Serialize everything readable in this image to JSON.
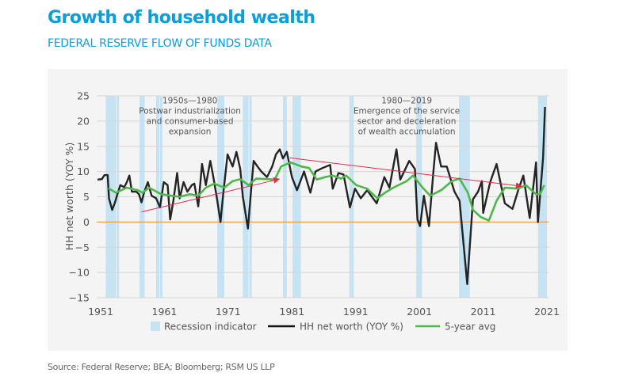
{
  "header": {
    "title": "Growth of household wealth",
    "subtitle": "FEDERAL RESERVE FLOW OF FUNDS DATA"
  },
  "footer": {
    "source": "Source: Federal Reserve; BEA; Bloomberg; RSM US LLP"
  },
  "chart_data": {
    "type": "line",
    "title": "",
    "xlabel": "",
    "ylabel": "HH net worth (YOY %)",
    "xlim": [
      1950.4,
      2021.3
    ],
    "ylim": [
      -15,
      25
    ],
    "x_ticks": [
      "1951",
      "1961",
      "1971",
      "1981",
      "1991",
      "2001",
      "2011",
      "2021"
    ],
    "y_ticks": [
      "25",
      "20",
      "15",
      "10",
      "5",
      "0",
      "−5",
      "−10",
      "−15"
    ],
    "grid": true,
    "legend_position": "bottom",
    "colors": {
      "recession": "#c5e3f3",
      "hh": "#111111",
      "avg": "#4db848",
      "zero_line": "#f08a24",
      "arrow": "#e8294c"
    },
    "legend": [
      "Recession indicator",
      "HH net worth (YOY %)",
      "5-year avg"
    ],
    "recessions": [
      [
        1951.8,
        1953.4
      ],
      [
        1953.5,
        1953.9
      ],
      [
        1957.1,
        1957.9
      ],
      [
        1959.7,
        1960.2
      ],
      [
        1960.3,
        1960.7
      ],
      [
        1969.3,
        1970.4
      ],
      [
        1973.3,
        1974.2
      ],
      [
        1974.3,
        1974.7
      ],
      [
        1979.6,
        1980.2
      ],
      [
        1981.1,
        1982.4
      ],
      [
        1990.0,
        1990.7
      ],
      [
        2000.5,
        2001.4
      ],
      [
        2007.2,
        2008.9
      ],
      [
        2019.6,
        2021.0
      ]
    ],
    "series": [
      {
        "name": "HH net worth (YOY %)",
        "points": [
          [
            1950.5,
            8.4
          ],
          [
            1951.2,
            8.5
          ],
          [
            1951.6,
            9.3
          ],
          [
            1952.1,
            9.3
          ],
          [
            1952.3,
            4.7
          ],
          [
            1952.8,
            2.4
          ],
          [
            1953.2,
            3.7
          ],
          [
            1953.7,
            5.8
          ],
          [
            1954.1,
            7.3
          ],
          [
            1954.7,
            6.9
          ],
          [
            1955.1,
            7.9
          ],
          [
            1955.5,
            9.2
          ],
          [
            1955.9,
            6.0
          ],
          [
            1956.6,
            6.0
          ],
          [
            1957.0,
            5.5
          ],
          [
            1957.4,
            3.9
          ],
          [
            1957.8,
            5.8
          ],
          [
            1958.4,
            7.9
          ],
          [
            1959.0,
            5.2
          ],
          [
            1959.7,
            4.7
          ],
          [
            1960.3,
            2.9
          ],
          [
            1960.9,
            7.9
          ],
          [
            1961.5,
            7.3
          ],
          [
            1961.9,
            0.5
          ],
          [
            1962.4,
            4.2
          ],
          [
            1963.0,
            9.7
          ],
          [
            1963.4,
            4.7
          ],
          [
            1964.0,
            7.9
          ],
          [
            1964.6,
            6.0
          ],
          [
            1965.3,
            7.3
          ],
          [
            1965.7,
            7.6
          ],
          [
            1966.3,
            3.1
          ],
          [
            1966.9,
            11.5
          ],
          [
            1967.5,
            7.3
          ],
          [
            1968.2,
            12.1
          ],
          [
            1968.6,
            9.4
          ],
          [
            1969.2,
            5.0
          ],
          [
            1969.8,
            0.0
          ],
          [
            1970.2,
            5.2
          ],
          [
            1970.9,
            13.4
          ],
          [
            1971.7,
            11.0
          ],
          [
            1972.3,
            13.9
          ],
          [
            1972.9,
            10.5
          ],
          [
            1973.3,
            5.0
          ],
          [
            1974.1,
            -1.3
          ],
          [
            1974.6,
            6.3
          ],
          [
            1975.0,
            12.1
          ],
          [
            1975.6,
            11.0
          ],
          [
            1976.2,
            10.0
          ],
          [
            1977.1,
            8.9
          ],
          [
            1977.9,
            11.0
          ],
          [
            1978.5,
            13.4
          ],
          [
            1979.1,
            14.4
          ],
          [
            1979.6,
            12.6
          ],
          [
            1980.2,
            13.9
          ],
          [
            1981.0,
            8.9
          ],
          [
            1981.8,
            6.3
          ],
          [
            1982.9,
            10.0
          ],
          [
            1983.9,
            5.8
          ],
          [
            1984.7,
            10.0
          ],
          [
            1985.8,
            10.7
          ],
          [
            1987.0,
            11.3
          ],
          [
            1987.4,
            6.6
          ],
          [
            1988.3,
            9.7
          ],
          [
            1989.1,
            9.4
          ],
          [
            1990.1,
            2.9
          ],
          [
            1990.9,
            6.6
          ],
          [
            1991.8,
            4.7
          ],
          [
            1992.8,
            6.3
          ],
          [
            1994.3,
            3.7
          ],
          [
            1995.5,
            8.9
          ],
          [
            1996.3,
            6.8
          ],
          [
            1997.4,
            14.4
          ],
          [
            1998.0,
            8.4
          ],
          [
            1999.4,
            12.1
          ],
          [
            2000.3,
            10.5
          ],
          [
            2000.7,
            0.5
          ],
          [
            2001.1,
            -0.8
          ],
          [
            2001.7,
            5.2
          ],
          [
            2002.5,
            -0.8
          ],
          [
            2003.2,
            10.0
          ],
          [
            2003.6,
            15.7
          ],
          [
            2004.4,
            11.0
          ],
          [
            2005.3,
            11.0
          ],
          [
            2006.5,
            6.0
          ],
          [
            2007.3,
            4.2
          ],
          [
            2008.5,
            -12.3
          ],
          [
            2009.4,
            4.5
          ],
          [
            2010.2,
            6.0
          ],
          [
            2010.8,
            8.1
          ],
          [
            2011.0,
            1.8
          ],
          [
            2012.1,
            7.9
          ],
          [
            2013.1,
            11.5
          ],
          [
            2014.4,
            3.7
          ],
          [
            2015.6,
            2.6
          ],
          [
            2016.5,
            6.3
          ],
          [
            2017.3,
            9.2
          ],
          [
            2018.3,
            0.8
          ],
          [
            2019.3,
            11.8
          ],
          [
            2019.6,
            0.0
          ],
          [
            2020.4,
            12.8
          ],
          [
            2020.7,
            22.8
          ]
        ]
      },
      {
        "name": "5-year avg",
        "points": [
          [
            1952.2,
            6.7
          ],
          [
            1953.4,
            5.8
          ],
          [
            1955.1,
            6.8
          ],
          [
            1956.8,
            6.3
          ],
          [
            1957.6,
            5.8
          ],
          [
            1958.6,
            6.8
          ],
          [
            1960.5,
            5.5
          ],
          [
            1962.1,
            5.2
          ],
          [
            1963.4,
            5.0
          ],
          [
            1965.0,
            5.5
          ],
          [
            1966.3,
            5.2
          ],
          [
            1967.5,
            6.8
          ],
          [
            1968.8,
            7.6
          ],
          [
            1970.4,
            6.8
          ],
          [
            1971.7,
            8.1
          ],
          [
            1972.9,
            8.5
          ],
          [
            1974.2,
            7.3
          ],
          [
            1975.4,
            8.6
          ],
          [
            1977.1,
            8.5
          ],
          [
            1978.3,
            8.4
          ],
          [
            1979.3,
            11.0
          ],
          [
            1980.8,
            11.8
          ],
          [
            1982.5,
            11.0
          ],
          [
            1983.7,
            10.7
          ],
          [
            1984.9,
            8.4
          ],
          [
            1986.2,
            8.9
          ],
          [
            1987.4,
            9.2
          ],
          [
            1988.7,
            8.6
          ],
          [
            1989.5,
            9.2
          ],
          [
            1991.1,
            7.3
          ],
          [
            1992.8,
            6.6
          ],
          [
            1994.4,
            4.7
          ],
          [
            1995.6,
            5.8
          ],
          [
            1996.9,
            6.8
          ],
          [
            1999.0,
            8.1
          ],
          [
            2000.0,
            9.2
          ],
          [
            2001.5,
            6.8
          ],
          [
            2002.7,
            5.2
          ],
          [
            2004.4,
            6.3
          ],
          [
            2006.1,
            8.1
          ],
          [
            2007.3,
            8.6
          ],
          [
            2008.6,
            5.8
          ],
          [
            2009.4,
            2.4
          ],
          [
            2010.6,
            1.0
          ],
          [
            2011.9,
            0.3
          ],
          [
            2013.1,
            4.2
          ],
          [
            2014.4,
            6.8
          ],
          [
            2016.5,
            6.6
          ],
          [
            2017.7,
            7.3
          ],
          [
            2019.3,
            5.5
          ],
          [
            2019.9,
            5.5
          ],
          [
            2020.6,
            7.3
          ]
        ]
      }
    ],
    "arrows": [
      {
        "from": [
          1957.4,
          2.0
        ],
        "to": [
          1979.0,
          8.5
        ]
      },
      {
        "from": [
          1980.7,
          12.7
        ],
        "to": [
          2017.0,
          7.1
        ]
      }
    ],
    "annotations": [
      {
        "lines": [
          "1950s—1980",
          "Postwar industrialization",
          "and consumer-based",
          "expansion"
        ],
        "x": 1965.0,
        "y": 23.5
      },
      {
        "lines": [
          "1980—2019",
          "Emergence of the service",
          "sector and deceleration",
          "of wealth accumulation"
        ],
        "x": 1999.0,
        "y": 23.5
      }
    ]
  }
}
